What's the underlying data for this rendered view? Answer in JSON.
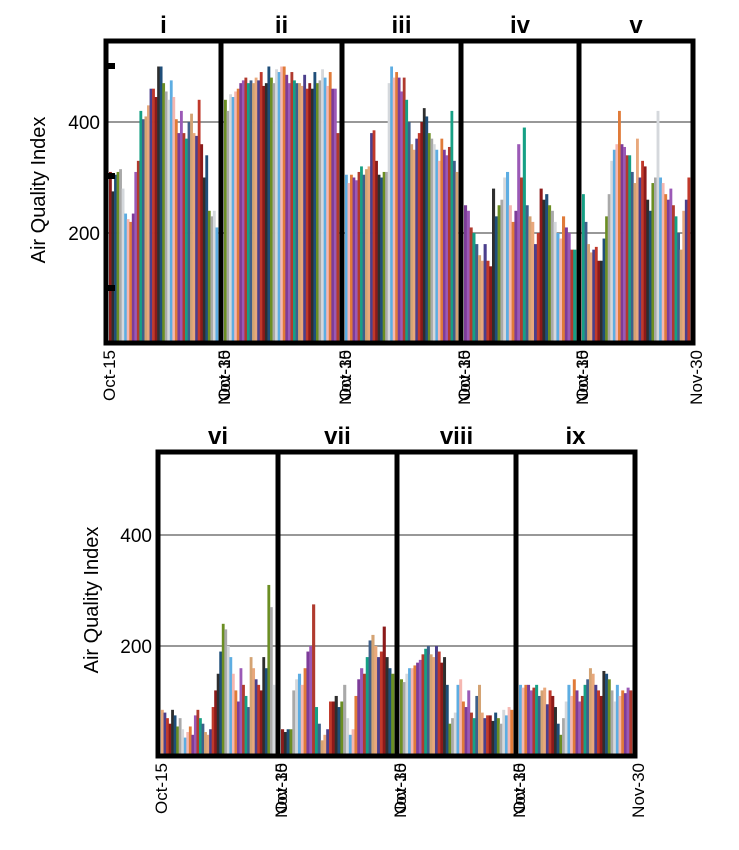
{
  "figure": {
    "ylabel": "Air Quality Index",
    "x_start": "Oct-15",
    "x_end": "Nov-30"
  },
  "bar_colors": [
    "#8B1A1A",
    "#3E5F8A",
    "#E07B39",
    "#6B8E23",
    "#4B3F8C",
    "#B03A2E",
    "#5DADE2",
    "#2E2E2E",
    "#D4A373",
    "#7D3C98",
    "#A9A9A9",
    "#C0392B",
    "#16A085",
    "#F5B7B1",
    "#1F4E79",
    "#E8A87C",
    "#9B59B6",
    "#D5D8DC"
  ],
  "chart_data": [
    {
      "type": "bar",
      "panel": "i",
      "row": 1,
      "yticks": [
        200,
        400
      ],
      "ylim": [
        0,
        550
      ],
      "values": [
        310,
        275,
        305,
        310,
        315,
        280,
        235,
        225,
        220,
        235,
        310,
        330,
        420,
        405,
        410,
        430,
        460,
        460,
        445,
        500,
        500,
        470,
        455,
        440,
        475,
        445,
        405,
        380,
        420,
        380,
        370,
        400,
        415,
        380,
        375,
        440,
        360,
        300,
        340,
        240,
        230,
        240,
        210
      ]
    },
    {
      "type": "bar",
      "panel": "ii",
      "row": 1,
      "yticks": [
        200,
        400
      ],
      "ylim": [
        0,
        550
      ],
      "values": [
        440,
        420,
        450,
        445,
        455,
        460,
        470,
        475,
        480,
        470,
        475,
        470,
        480,
        475,
        490,
        465,
        470,
        500,
        480,
        470,
        495,
        490,
        500,
        500,
        485,
        470,
        490,
        475,
        470,
        470,
        465,
        485,
        460,
        470,
        460,
        490,
        470,
        475,
        495,
        480,
        465,
        490,
        460,
        460,
        380
      ]
    },
    {
      "type": "bar",
      "panel": "iii",
      "row": 1,
      "yticks": [
        200,
        400
      ],
      "ylim": [
        0,
        550
      ],
      "values": [
        305,
        290,
        305,
        300,
        295,
        310,
        320,
        305,
        315,
        320,
        380,
        385,
        330,
        305,
        300,
        310,
        310,
        470,
        500,
        480,
        490,
        480,
        455,
        480,
        440,
        400,
        360,
        350,
        370,
        380,
        400,
        425,
        410,
        380,
        370,
        360,
        350,
        330,
        370,
        350,
        340,
        355,
        420,
        330,
        310
      ]
    },
    {
      "type": "bar",
      "panel": "iv",
      "row": 1,
      "yticks": [
        200,
        400
      ],
      "ylim": [
        0,
        550
      ],
      "values": [
        250,
        240,
        210,
        200,
        180,
        160,
        150,
        180,
        150,
        140,
        280,
        230,
        250,
        260,
        300,
        310,
        250,
        220,
        240,
        360,
        300,
        390,
        250,
        230,
        220,
        180,
        200,
        280,
        260,
        270,
        250,
        240,
        220,
        200,
        190,
        230,
        210,
        200,
        170,
        170
      ]
    },
    {
      "type": "bar",
      "panel": "v",
      "row": 1,
      "yticks": [
        200,
        400
      ],
      "ylim": [
        0,
        550
      ],
      "values": [
        270,
        220,
        180,
        165,
        170,
        175,
        150,
        150,
        190,
        230,
        270,
        330,
        350,
        360,
        420,
        360,
        355,
        340,
        340,
        310,
        290,
        370,
        300,
        330,
        320,
        260,
        240,
        290,
        300,
        420,
        300,
        290,
        270,
        260,
        280,
        250,
        230,
        200,
        170,
        240,
        260,
        300
      ]
    },
    {
      "type": "bar",
      "panel": "vi",
      "row": 2,
      "yticks": [
        200,
        400
      ],
      "ylim": [
        0,
        550
      ],
      "values": [
        85,
        80,
        70,
        60,
        85,
        75,
        55,
        70,
        50,
        35,
        45,
        55,
        40,
        75,
        85,
        70,
        60,
        45,
        40,
        50,
        90,
        120,
        150,
        190,
        240,
        230,
        200,
        180,
        150,
        120,
        100,
        160,
        130,
        110,
        90,
        180,
        160,
        140,
        130,
        120,
        180,
        160,
        310,
        270,
        130
      ]
    },
    {
      "type": "bar",
      "panel": "vii",
      "row": 2,
      "yticks": [
        200,
        400
      ],
      "ylim": [
        0,
        550
      ],
      "values": [
        50,
        45,
        50,
        50,
        120,
        140,
        150,
        130,
        160,
        190,
        200,
        275,
        90,
        60,
        30,
        40,
        50,
        100,
        100,
        110,
        90,
        100,
        130,
        70,
        40,
        50,
        110,
        140,
        160,
        150,
        180,
        210,
        220,
        200,
        180,
        190,
        235,
        180,
        160,
        150
      ]
    },
    {
      "type": "bar",
      "panel": "viii",
      "row": 2,
      "yticks": [
        200,
        400
      ],
      "ylim": [
        0,
        550
      ],
      "values": [
        140,
        135,
        150,
        160,
        160,
        165,
        170,
        175,
        185,
        195,
        200,
        185,
        180,
        200,
        190,
        170,
        180,
        130,
        60,
        70,
        80,
        130,
        140,
        100,
        90,
        120,
        80,
        70,
        110,
        130,
        80,
        70,
        75,
        75,
        65,
        80,
        70,
        60,
        85,
        75,
        90,
        85
      ]
    },
    {
      "type": "bar",
      "panel": "ix",
      "row": 2,
      "yticks": [
        200,
        400
      ],
      "ylim": [
        0,
        550
      ],
      "values": [
        130,
        125,
        130,
        130,
        120,
        125,
        130,
        110,
        120,
        125,
        95,
        120,
        110,
        90,
        60,
        40,
        70,
        100,
        130,
        110,
        140,
        120,
        100,
        110,
        130,
        140,
        160,
        150,
        130,
        120,
        110,
        155,
        150,
        140,
        120,
        100,
        130,
        110,
        120,
        115,
        125,
        120
      ]
    }
  ]
}
